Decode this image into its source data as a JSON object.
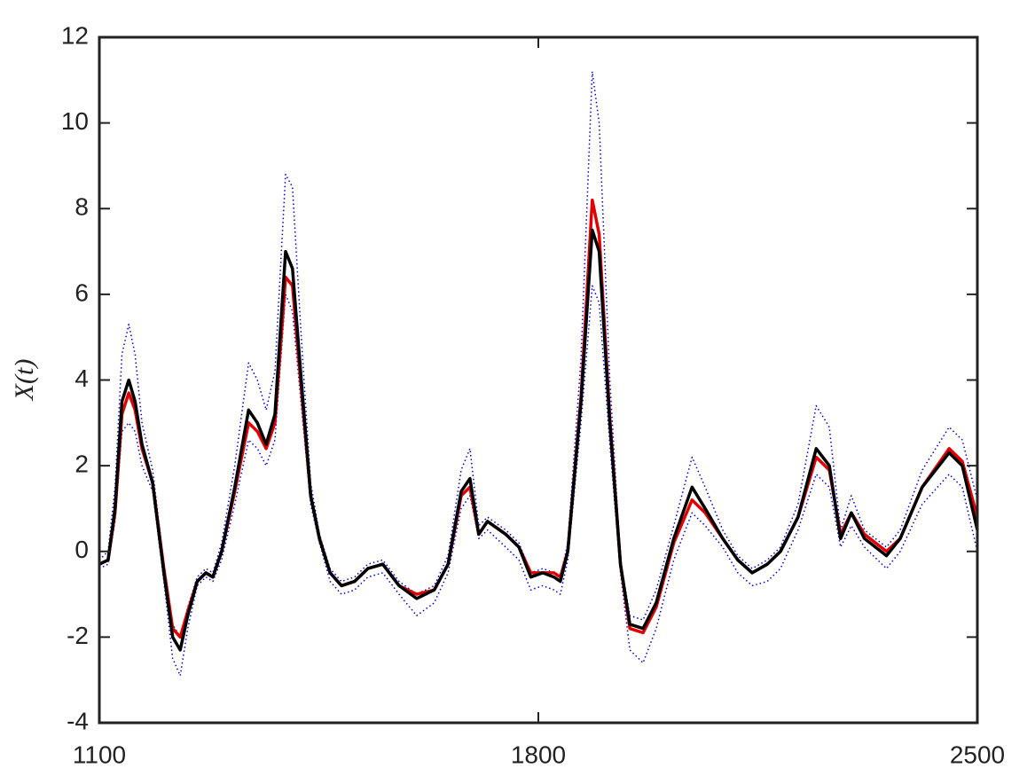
{
  "chart_data": {
    "type": "line",
    "y_label": "X(t)",
    "x": [
      1100,
      1114,
      1125,
      1136,
      1147,
      1157,
      1168,
      1185,
      1203,
      1217,
      1229,
      1241,
      1256,
      1270,
      1281,
      1295,
      1316,
      1338,
      1352,
      1366,
      1380,
      1397,
      1408,
      1422,
      1437,
      1451,
      1468,
      1486,
      1507,
      1528,
      1552,
      1578,
      1606,
      1634,
      1656,
      1677,
      1691,
      1705,
      1719,
      1748,
      1769,
      1788,
      1807,
      1825,
      1835,
      1847,
      1868,
      1886,
      1897,
      1914,
      1931,
      1946,
      1967,
      1988,
      2016,
      2045,
      2066,
      2094,
      2118,
      2141,
      2165,
      2186,
      2214,
      2243,
      2264,
      2282,
      2299,
      2320,
      2355,
      2377,
      2412,
      2455,
      2476,
      2500
    ],
    "series": [
      {
        "color": "#0000cc",
        "dash": "dotted",
        "values": [
          -0.2,
          0,
          1.5,
          4.6,
          5.3,
          4.6,
          3.0,
          1.9,
          -0.3,
          -1.7,
          -2.0,
          -1.3,
          -0.6,
          -0.4,
          -0.5,
          0.2,
          2.0,
          4.4,
          4.0,
          3.3,
          4.2,
          8.8,
          8.5,
          5.0,
          1.6,
          0.4,
          -0.4,
          -0.7,
          -0.6,
          -0.3,
          -0.2,
          -0.7,
          -1.0,
          -0.8,
          -0.1,
          1.9,
          2.4,
          0.6,
          0.8,
          0.5,
          0.2,
          -0.5,
          -0.4,
          -0.5,
          -0.6,
          0.2,
          4.5,
          11.2,
          10.0,
          4.0,
          -0.2,
          -1.5,
          -1.6,
          -0.9,
          0.6,
          2.2,
          1.5,
          0.5,
          -0.1,
          -0.4,
          -0.2,
          0.1,
          1.1,
          3.4,
          2.9,
          0.5,
          1.3,
          0.5,
          0.1,
          0.5,
          1.9,
          2.9,
          2.6,
          1.2
        ]
      },
      {
        "color": "#0000cc",
        "dash": "dotted",
        "values": [
          -0.4,
          -0.3,
          0.7,
          2.8,
          3.0,
          2.8,
          2.0,
          1.4,
          -0.7,
          -2.5,
          -2.9,
          -1.8,
          -0.8,
          -0.6,
          -0.7,
          -0.2,
          1.1,
          2.6,
          2.4,
          2.0,
          2.6,
          6.0,
          5.6,
          3.4,
          1.1,
          0.2,
          -0.7,
          -1.0,
          -0.9,
          -0.6,
          -0.5,
          -1.0,
          -1.5,
          -1.2,
          -0.5,
          1.0,
          1.3,
          0.3,
          0.5,
          0.1,
          -0.2,
          -0.9,
          -0.8,
          -0.9,
          -1.0,
          -0.2,
          3.0,
          6.2,
          5.8,
          2.5,
          -0.5,
          -2.3,
          -2.6,
          -1.8,
          -0.2,
          0.9,
          0.6,
          0.1,
          -0.5,
          -0.8,
          -0.7,
          -0.4,
          0.5,
          1.8,
          1.5,
          0.1,
          0.6,
          0.1,
          -0.4,
          0,
          1.1,
          1.8,
          1.5,
          0
        ]
      },
      {
        "color": "#e00000",
        "dash": "solid",
        "values": [
          -0.3,
          -0.2,
          0.9,
          3.2,
          3.7,
          3.3,
          2.4,
          1.6,
          -0.4,
          -1.8,
          -2.0,
          -1.4,
          -0.7,
          -0.5,
          -0.6,
          0,
          1.4,
          3.0,
          2.8,
          2.4,
          3.0,
          6.4,
          6.2,
          3.8,
          1.3,
          0.3,
          -0.5,
          -0.8,
          -0.7,
          -0.4,
          -0.3,
          -0.8,
          -1.0,
          -0.9,
          -0.3,
          1.3,
          1.5,
          0.4,
          0.7,
          0.4,
          0.1,
          -0.5,
          -0.5,
          -0.5,
          -0.6,
          0,
          3.6,
          8.2,
          7.4,
          3.1,
          -0.3,
          -1.8,
          -1.9,
          -1.3,
          0.2,
          1.2,
          0.9,
          0.3,
          -0.2,
          -0.5,
          -0.3,
          0,
          0.8,
          2.2,
          1.9,
          0.4,
          0.9,
          0.4,
          0,
          0.3,
          1.5,
          2.4,
          2.1,
          0.8
        ]
      },
      {
        "color": "#000000",
        "dash": "solid",
        "values": [
          -0.3,
          -0.2,
          1.0,
          3.5,
          4.0,
          3.5,
          2.5,
          1.6,
          -0.5,
          -2.0,
          -2.3,
          -1.5,
          -0.7,
          -0.5,
          -0.6,
          0,
          1.5,
          3.3,
          3.0,
          2.5,
          3.2,
          7.0,
          6.6,
          4.0,
          1.3,
          0.3,
          -0.5,
          -0.8,
          -0.7,
          -0.4,
          -0.3,
          -0.8,
          -1.1,
          -0.9,
          -0.3,
          1.4,
          1.7,
          0.4,
          0.7,
          0.4,
          0.1,
          -0.6,
          -0.5,
          -0.6,
          -0.7,
          0,
          3.5,
          7.5,
          7.0,
          3.0,
          -0.3,
          -1.7,
          -1.8,
          -1.2,
          0.3,
          1.5,
          1.0,
          0.3,
          -0.2,
          -0.5,
          -0.3,
          0,
          0.8,
          2.4,
          2.0,
          0.3,
          0.9,
          0.3,
          -0.1,
          0.3,
          1.5,
          2.3,
          2.0,
          0.5
        ]
      }
    ],
    "xlim": [
      1100,
      2500
    ],
    "xticks": [
      1100,
      1800,
      2500
    ],
    "ylim": [
      -4,
      12
    ],
    "yticks": [
      -4,
      -2,
      0,
      2,
      4,
      6,
      8,
      10,
      12
    ],
    "grid": false
  }
}
